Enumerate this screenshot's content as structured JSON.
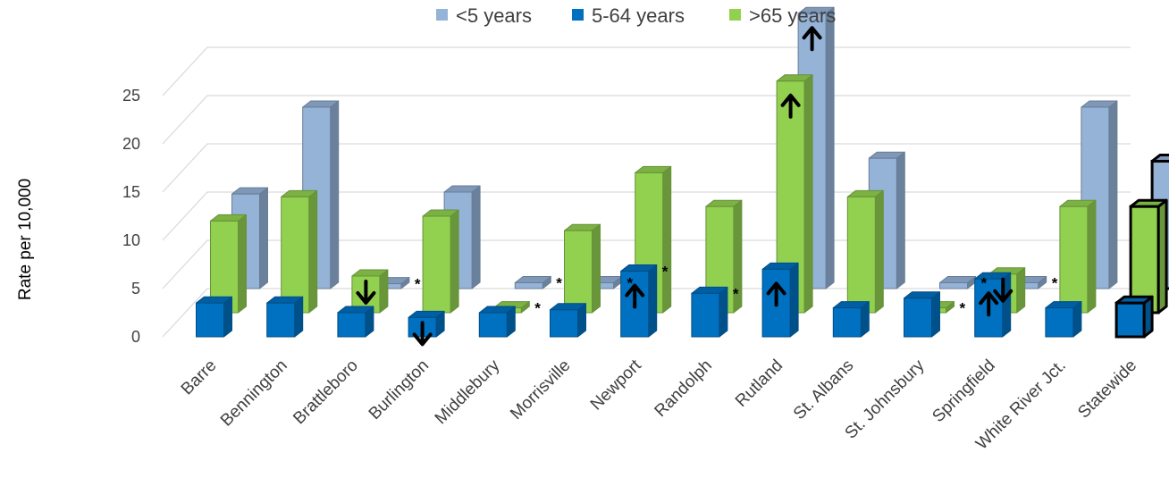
{
  "chart_data": {
    "type": "bar",
    "ylabel": "Rate per 10,000",
    "xlabel": "",
    "ylim": [
      0,
      27
    ],
    "yticks": [
      0,
      5,
      10,
      15,
      20,
      25
    ],
    "grid": true,
    "legend_position": "top",
    "categories": [
      "Barre",
      "Bennington",
      "Brattleboro",
      "Burlington",
      "Middlebury",
      "Morrisville",
      "Newport",
      "Randolph",
      "Rutland",
      "St. Albans",
      "St. Johnsbury",
      "Springfield",
      "White River Jct.",
      "Statewide"
    ],
    "series": [
      {
        "name": "<5 years",
        "color": "#95B3D7",
        "values": [
          9.8,
          18.8,
          0.5,
          10.0,
          0.6,
          0.6,
          null,
          null,
          28.5,
          13.5,
          0.6,
          0.6,
          18.8,
          13.2
        ]
      },
      {
        "name": "5-64 years",
        "color": "#0070C0",
        "values": [
          3.5,
          3.5,
          2.5,
          2.0,
          2.5,
          2.8,
          6.8,
          4.5,
          7.0,
          3.0,
          4.0,
          6.0,
          3.0,
          3.5
        ]
      },
      {
        "name": ">65 years",
        "color": "#92D050",
        "values": [
          9.5,
          12.0,
          3.8,
          10.0,
          0.5,
          8.5,
          14.5,
          11.0,
          24.0,
          12.0,
          0.5,
          4.0,
          11.0,
          11.0
        ]
      }
    ],
    "markers": {
      "up_arrow": [
        {
          "category": "Newport",
          "series": "5-64 years"
        },
        {
          "category": "Rutland",
          "series": "<5 years"
        },
        {
          "category": "Rutland",
          "series": "5-64 years"
        },
        {
          "category": "Rutland",
          "series": ">65 years"
        },
        {
          "category": "Springfield",
          "series": "5-64 years"
        }
      ],
      "down_arrow": [
        {
          "category": "Brattleboro",
          "series": ">65 years"
        },
        {
          "category": "Burlington",
          "series": "5-64 years"
        },
        {
          "category": "Springfield",
          "series": ">65 years"
        }
      ],
      "asterisk": [
        {
          "category": "Brattleboro",
          "series": "<5 years"
        },
        {
          "category": "Middlebury",
          "series": "<5 years"
        },
        {
          "category": "Middlebury",
          "series": ">65 years"
        },
        {
          "category": "Morrisville",
          "series": "<5 years"
        },
        {
          "category": "Newport",
          "series": "5-64 years"
        },
        {
          "category": "Randolph",
          "series": "5-64 years"
        },
        {
          "category": "St. Johnsbury",
          "series": "<5 years"
        },
        {
          "category": "St. Johnsbury",
          "series": ">65 years"
        },
        {
          "category": "Springfield",
          "series": "<5 years"
        }
      ],
      "asterisk_text": "*"
    },
    "highlighted_category": "Statewide"
  }
}
